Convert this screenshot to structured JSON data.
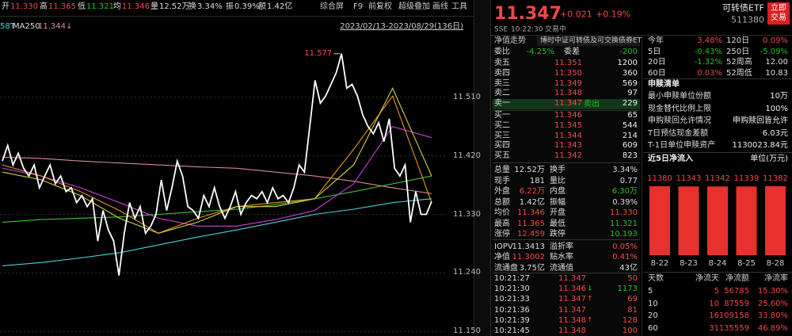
{
  "quote_bar": [
    {
      "label": "开",
      "value": "11.330",
      "color": "#f04848"
    },
    {
      "label": "高",
      "value": "11.365",
      "color": "#f04848"
    },
    {
      "label": "低",
      "value": "11.321",
      "color": "#22c022"
    },
    {
      "label": "均",
      "value": "11.346",
      "color": "#f04848"
    },
    {
      "label": "量",
      "value": "12.52万",
      "color": "#dddddd"
    },
    {
      "label": "换",
      "value": "3.34%",
      "color": "#dddddd"
    },
    {
      "label": "振",
      "value": "0.39%",
      "color": "#dddddd"
    },
    {
      "label": "额",
      "value": "1.42亿",
      "color": "#dddddd"
    }
  ],
  "toolbar": [
    "综合屏",
    "F9",
    "前复权",
    "超级叠加",
    "画线",
    "工具"
  ],
  "indicator": {
    "prefix": "58T",
    "name": "MA250",
    "value": "11.344↓"
  },
  "date_range": "2023/02/13-2023/08/29(136日)",
  "chart": {
    "peak_label": "11.577",
    "ylim": [
      11.143,
      11.606
    ],
    "yticks": [
      {
        "value": 11.51,
        "label": "11.510"
      },
      {
        "value": 11.42,
        "label": "11.420"
      },
      {
        "value": 11.33,
        "label": "11.330"
      },
      {
        "value": 11.24,
        "label": "11.240"
      },
      {
        "value": 11.15,
        "label": "11.150"
      }
    ],
    "price": {
      "color": "#ffffff",
      "values": [
        11.412,
        11.436,
        11.406,
        11.424,
        11.401,
        11.389,
        11.406,
        11.371,
        11.389,
        11.406,
        11.377,
        11.389,
        11.365,
        11.371,
        11.348,
        11.359,
        11.342,
        11.354,
        11.289,
        11.336,
        11.306,
        11.289,
        11.236,
        11.301,
        11.348,
        11.324,
        11.342,
        11.301,
        11.312,
        11.33,
        11.383,
        11.336,
        11.371,
        11.412,
        11.389,
        11.342,
        11.336,
        11.324,
        11.359,
        11.342,
        11.371,
        11.342,
        11.324,
        11.342,
        11.365,
        11.33,
        11.348,
        11.359,
        11.354,
        11.365,
        11.348,
        11.371,
        11.354,
        11.359,
        11.348,
        11.371,
        11.406,
        11.395,
        11.465,
        11.536,
        11.501,
        11.512,
        11.53,
        11.548,
        11.577,
        11.524,
        11.53,
        11.512,
        11.483,
        11.465,
        11.454,
        11.471,
        11.442,
        11.477,
        11.401,
        11.389,
        11.406,
        11.318,
        11.365,
        11.33,
        11.33,
        11.35
      ]
    },
    "ma_lines": [
      {
        "color": "#d88a8a",
        "values": [
          11.418,
          11.416,
          11.412,
          11.409,
          11.406,
          11.403,
          11.401,
          11.395,
          11.389,
          11.381,
          11.371,
          11.362
        ]
      },
      {
        "color": "#3fbf3f",
        "values": [
          11.318,
          11.322,
          11.324,
          11.326,
          11.33,
          11.334,
          11.338,
          11.345,
          11.354,
          11.365,
          11.377,
          11.389
        ]
      },
      {
        "color": "#44d6d6",
        "values": [
          11.251,
          11.256,
          11.263,
          11.271,
          11.283,
          11.295,
          11.306,
          11.318,
          11.33,
          11.338,
          11.348,
          11.354
        ]
      },
      {
        "color": "#d040d8",
        "values": [
          11.401,
          11.389,
          11.371,
          11.348,
          11.324,
          11.312,
          11.312,
          11.322,
          11.336,
          11.377,
          11.465,
          11.448
        ]
      },
      {
        "color": "#e8961e",
        "values": [
          11.406,
          11.389,
          11.365,
          11.336,
          11.301,
          11.324,
          11.342,
          11.348,
          11.354,
          11.43,
          11.512,
          11.348
        ]
      },
      {
        "color": "#d6d040",
        "values": [
          11.395,
          11.383,
          11.359,
          11.324,
          11.301,
          11.318,
          11.342,
          11.342,
          11.354,
          11.406,
          11.524,
          11.389
        ]
      }
    ]
  },
  "quote": {
    "price": "11.347",
    "change": "+0.021",
    "change_pct": "+0.19%",
    "name": "可转债ETF",
    "code": "511380",
    "trade_button": [
      "立即",
      "交易"
    ],
    "status": [
      "SSE",
      "10:22:30",
      "交易中"
    ]
  },
  "order_book": {
    "tabs": [
      "净值走势",
      "博时中证可转债及可交换债券ET"
    ],
    "ratio": [
      "委比",
      "-4.25%",
      "委差",
      "-200"
    ],
    "asks": [
      [
        "卖五",
        "11.351",
        "1200"
      ],
      [
        "卖四",
        "11.350",
        "360"
      ],
      [
        "卖三",
        "11.349",
        "569"
      ],
      [
        "卖二",
        "11.348",
        "97"
      ],
      [
        "卖一",
        "11.347",
        "229"
      ]
    ],
    "sell_button": "卖出",
    "bids": [
      [
        "买一",
        "11.346",
        "65"
      ],
      [
        "买二",
        "11.345",
        "544"
      ],
      [
        "买三",
        "11.344",
        "214"
      ],
      [
        "买四",
        "11.343",
        "609"
      ],
      [
        "买五",
        "11.342",
        "823"
      ]
    ]
  },
  "stats": [
    {
      "cells": [
        "总量",
        "12.52万",
        "换手",
        "3.34%"
      ],
      "colors": [
        "#dddddd",
        "#dddddd"
      ]
    },
    {
      "cells": [
        "现手",
        "181",
        "量比",
        "0.77"
      ],
      "colors": [
        "#dddddd",
        "#dddddd"
      ]
    },
    {
      "cells": [
        "外盘",
        "6.22万",
        "内盘",
        "6.30万"
      ],
      "colors": [
        "#f04848",
        "#22c022"
      ]
    },
    {
      "cells": [
        "总额",
        "1.42亿",
        "振幅",
        "0.39%"
      ],
      "colors": [
        "#dddddd",
        "#dddddd"
      ]
    },
    {
      "cells": [
        "均价",
        "11.346",
        "开盘",
        "11.330"
      ],
      "colors": [
        "#f04848",
        "#f04848"
      ]
    },
    {
      "cells": [
        "最高",
        "11.365",
        "最低",
        "11.321"
      ],
      "colors": [
        "#f04848",
        "#22c022"
      ]
    },
    {
      "cells": [
        "涨停",
        "12.459",
        "跌停",
        "10.193"
      ],
      "colors": [
        "#f04848",
        "#22c022"
      ]
    },
    {
      "cells": [
        "IOPV",
        "11.3413",
        "溢折率",
        "0.05%"
      ],
      "colors": [
        "#dddddd",
        "#f04848"
      ]
    },
    {
      "cells": [
        "净值",
        "11.3002",
        "贴水率",
        "0.41%"
      ],
      "colors": [
        "#f04848",
        "#f04848"
      ]
    },
    {
      "cells": [
        "流通盘",
        "3.75亿",
        "流通值",
        "43亿"
      ],
      "colors": [
        "#dddddd",
        "#dddddd"
      ]
    }
  ],
  "ticks": [
    {
      "time": "10:21:27",
      "price": "11.347",
      "vol": "50"
    },
    {
      "time": "10:21:30",
      "price": "11.346",
      "dir": "↓",
      "vol": "1173"
    },
    {
      "time": "10:21:33",
      "price": "11.347",
      "dir": "↑",
      "vol": "69"
    },
    {
      "time": "10:21:36",
      "price": "11.347",
      "vol": "81"
    },
    {
      "time": "10:21:39",
      "price": "11.348",
      "dir": "↑",
      "vol": "128"
    },
    {
      "time": "10:21:45",
      "price": "11.348",
      "vol": "100"
    }
  ],
  "performance": [
    [
      "今年",
      "3.48%",
      "120日",
      "0.09%"
    ],
    [
      "5日",
      "-0.43%",
      "250日",
      "-5.09%"
    ],
    [
      "20日",
      "-1.32%",
      "52周高",
      "12.00"
    ],
    [
      "60日",
      "0.03%",
      "52周低",
      "10.83"
    ]
  ],
  "redemption": {
    "title": "申赎清单",
    "rows": [
      [
        "最小申赎单位份额",
        "10万"
      ],
      [
        "现金替代比例上限",
        "100%"
      ],
      [
        "申购赎回允许情况",
        "申购赎回皆允许"
      ],
      [
        "T日预估现金差额",
        "6.03元"
      ],
      [
        "T-1日单位申赎资产",
        "1130023.84元"
      ]
    ]
  },
  "flow": {
    "title": "近5日净流入",
    "unit": "单位(万元)",
    "color": "#e8302c",
    "dates": [
      "8-22",
      "8-23",
      "8-24",
      "8-25",
      "8-28"
    ],
    "values": [
      11380,
      11343,
      11342,
      11339,
      11382
    ]
  },
  "flow_table": {
    "header": [
      "天数",
      "净流天",
      "净流额",
      "净流率"
    ],
    "rows": [
      [
        "5",
        "5",
        "56785",
        "15.30%"
      ],
      [
        "10",
        "10",
        "87559",
        "25.60%"
      ],
      [
        "20",
        "16",
        "109158",
        "33.80%"
      ],
      [
        "60",
        "31",
        "135559",
        "46.89%"
      ]
    ]
  }
}
